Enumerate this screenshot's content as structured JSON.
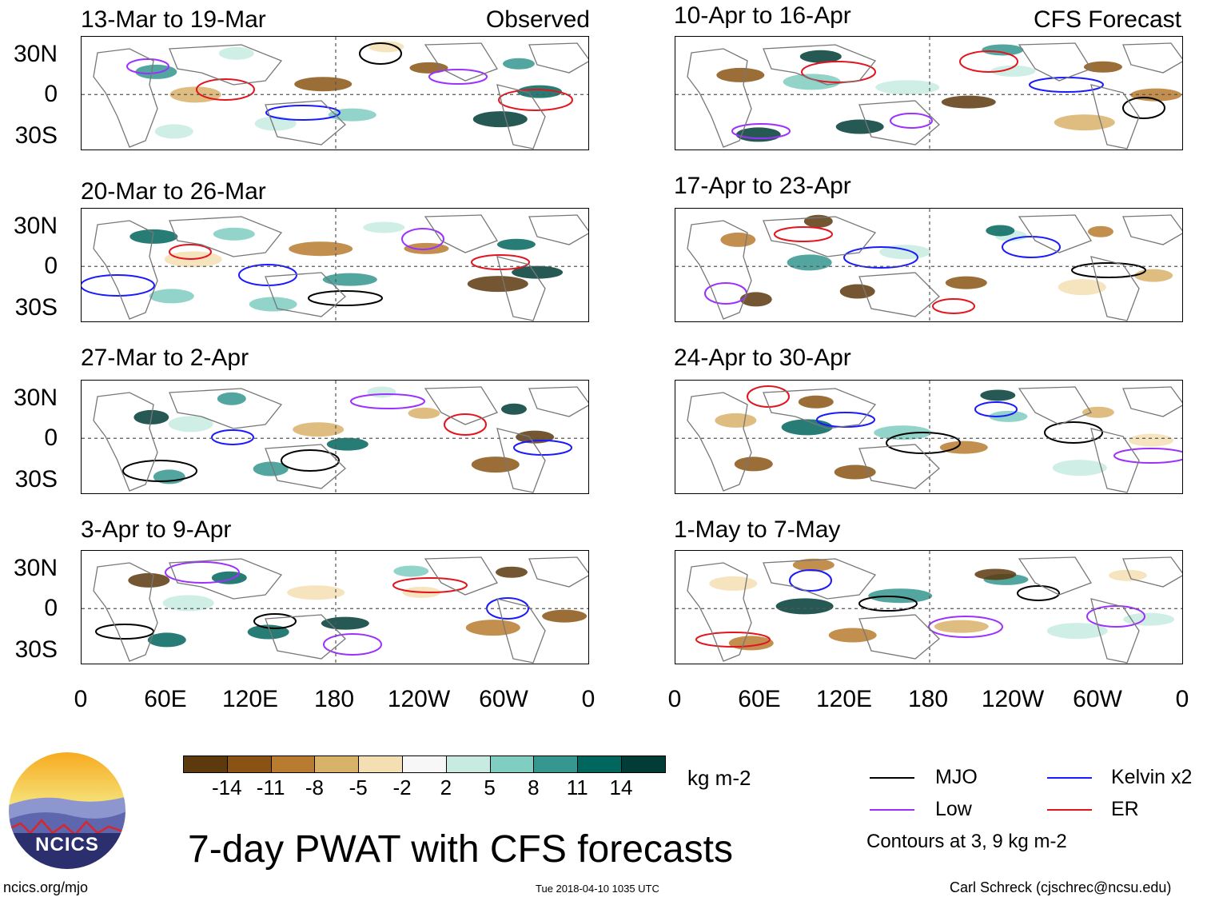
{
  "header": {
    "observed_label": "Observed",
    "forecast_label": "CFS Forecast"
  },
  "panels_observed": [
    {
      "title": "13-Mar to 19-Mar"
    },
    {
      "title": "20-Mar to 26-Mar"
    },
    {
      "title": "27-Mar to 2-Apr"
    },
    {
      "title": "3-Apr to 9-Apr"
    }
  ],
  "panels_forecast": [
    {
      "title": "10-Apr to 16-Apr"
    },
    {
      "title": "17-Apr to 23-Apr"
    },
    {
      "title": "24-Apr to 30-Apr"
    },
    {
      "title": "1-May to 7-May"
    }
  ],
  "lat_labels": [
    "30N",
    "0",
    "30S"
  ],
  "lon_labels": [
    "0",
    "60E",
    "120E",
    "180",
    "120W",
    "60W",
    "0"
  ],
  "colorbar": {
    "unit": "kg m-2",
    "ticks": [
      "-14",
      "-11",
      "-8",
      "-5",
      "-2",
      "2",
      "5",
      "8",
      "11",
      "14"
    ],
    "colors": [
      "#5c3a0e",
      "#8a5314",
      "#b87b2f",
      "#d9b26a",
      "#f3dfb1",
      "#f7f7f7",
      "#c7ebe1",
      "#80cdc1",
      "#35978f",
      "#01665e",
      "#013c36"
    ]
  },
  "legend": {
    "items": [
      {
        "label": "MJO",
        "color": "#000000"
      },
      {
        "label": "Kelvin x2",
        "color": "#1a1aff"
      },
      {
        "label": "Low",
        "color": "#9b30ff"
      },
      {
        "label": "ER",
        "color": "#e3141e"
      }
    ],
    "contour_note": "Contours at 3, 9 kg m-2"
  },
  "logo": {
    "text": "NCICS"
  },
  "title": "7-day PWAT with CFS forecasts",
  "footer": {
    "url": "ncics.org/mjo",
    "timestamp": "Tue 2018-04-10 1035 UTC",
    "author": "Carl Schreck (cjschrec@ncsu.edu)"
  }
}
